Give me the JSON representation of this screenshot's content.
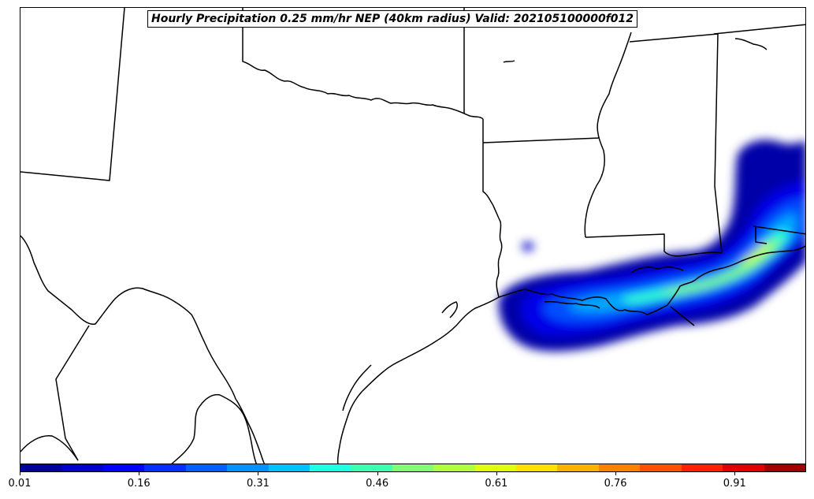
{
  "title": "Hourly Precipitation 0.25 mm/hr NEP (40km radius) Valid: 202105100000f012",
  "colorbar": {
    "colors": [
      "#00009c",
      "#0000c8",
      "#0000ff",
      "#0030ff",
      "#0060ff",
      "#0090ff",
      "#00c0ff",
      "#20ffe0",
      "#40ffb0",
      "#80ff70",
      "#b0ff40",
      "#e0ff10",
      "#ffe000",
      "#ffb000",
      "#ff8000",
      "#ff5000",
      "#ff2000",
      "#e00000",
      "#a00000"
    ],
    "tick_labels": [
      "0.01",
      "0.16",
      "0.31",
      "0.46",
      "0.61",
      "0.76",
      "0.91"
    ],
    "min": 0.01,
    "max": 1.0
  },
  "map": {
    "boundary_color": "#000000",
    "region": "South-central United States and Gulf of Mexico coast"
  }
}
